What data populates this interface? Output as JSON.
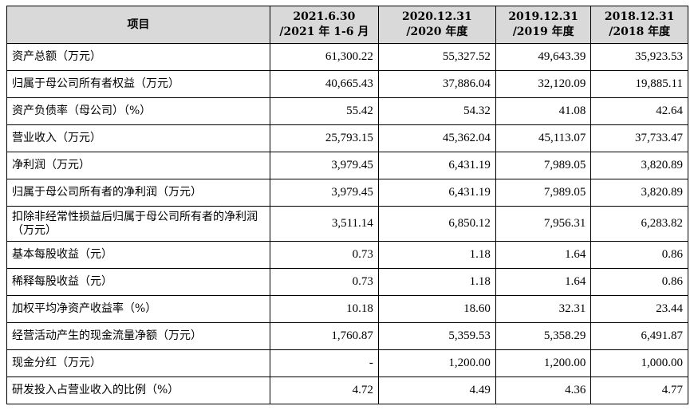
{
  "header": {
    "item": "项目",
    "col1_line1": "2021.6.30",
    "col1_line2": "/2021 年 1-6 月",
    "col2_line1": "2020.12.31",
    "col2_line2": "/2020 年度",
    "col3_line1": "2019.12.31",
    "col3_line2": "/2019 年度",
    "col4_line1": "2018.12.31",
    "col4_line2": "/2018 年度"
  },
  "rows": [
    {
      "label": "资产总额（万元）",
      "values": [
        "61,300.22",
        "55,327.52",
        "49,643.39",
        "35,923.53"
      ]
    },
    {
      "label": "归属于母公司所有者权益（万元）",
      "values": [
        "40,665.43",
        "37,886.04",
        "32,120.09",
        "19,885.11"
      ]
    },
    {
      "label": "资产负债率（母公司）（%）",
      "values": [
        "55.42",
        "54.32",
        "41.08",
        "42.64"
      ]
    },
    {
      "label": "营业收入（万元）",
      "values": [
        "25,793.15",
        "45,362.04",
        "45,113.07",
        "37,733.47"
      ]
    },
    {
      "label": "净利润（万元）",
      "values": [
        "3,979.45",
        "6,431.19",
        "7,989.05",
        "3,820.89"
      ]
    },
    {
      "label": "归属于母公司所有者的净利润（万元）",
      "values": [
        "3,979.45",
        "6,431.19",
        "7,989.05",
        "3,820.89"
      ]
    },
    {
      "label": "扣除非经常性损益后归属于母公司所有者的净利润（万元）",
      "values": [
        "3,511.14",
        "6,850.12",
        "7,956.31",
        "6,283.82"
      ]
    },
    {
      "label": "基本每股收益（元）",
      "values": [
        "0.73",
        "1.18",
        "1.64",
        "0.86"
      ]
    },
    {
      "label": "稀释每股收益（元）",
      "values": [
        "0.73",
        "1.18",
        "1.64",
        "0.86"
      ]
    },
    {
      "label": "加权平均净资产收益率（%）",
      "values": [
        "10.18",
        "18.60",
        "32.31",
        "23.44"
      ]
    },
    {
      "label": "经营活动产生的现金流量净额（万元）",
      "values": [
        "1,760.87",
        "5,359.53",
        "5,358.29",
        "6,491.87"
      ]
    },
    {
      "label": "现金分红（万元）",
      "values": [
        "-",
        "1,200.00",
        "1,200.00",
        "1,000.00"
      ]
    },
    {
      "label": "研发投入占营业收入的比例（%）",
      "values": [
        "4.72",
        "4.49",
        "4.36",
        "4.77"
      ]
    }
  ]
}
